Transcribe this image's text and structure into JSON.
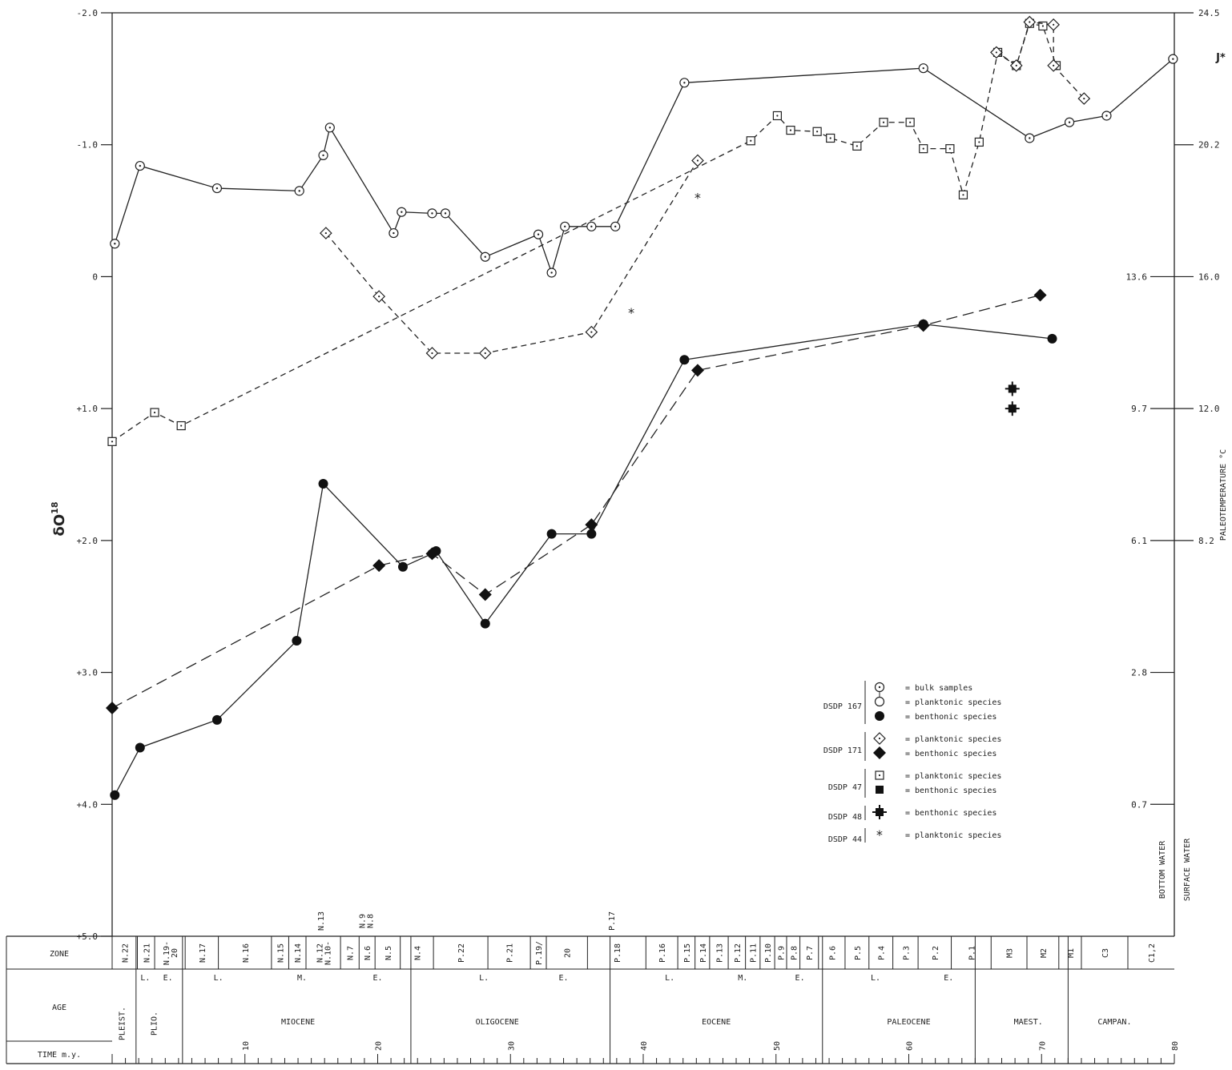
{
  "chart_data": {
    "type": "line",
    "ylabel": "δO",
    "ylabel_sup": "18",
    "y2label": "PALEOTEMPERATURE °C",
    "y_axis_direction": "inverted (negative values at top)",
    "ylim": [
      -2.0,
      5.0
    ],
    "xlim": [
      0,
      80
    ],
    "yticks": [
      {
        "value": -2.0,
        "label": "-2.0"
      },
      {
        "value": -1.0,
        "label": "-1.0"
      },
      {
        "value": 0,
        "label": "0"
      },
      {
        "value": 1.0,
        "label": "+1.0"
      },
      {
        "value": 2.0,
        "label": "+2.0"
      },
      {
        "value": 3.0,
        "label": "+3.0"
      },
      {
        "value": 4.0,
        "label": "+4.0"
      },
      {
        "value": 5.0,
        "label": "+5.0"
      }
    ],
    "surface_water_temps": [
      {
        "value": -2.0,
        "label": "24.5"
      },
      {
        "value": -1.0,
        "label": "20.2"
      },
      {
        "value": 0,
        "label": "16.0"
      },
      {
        "value": 1.0,
        "label": "12.0"
      },
      {
        "value": 2.0,
        "label": "8.2"
      }
    ],
    "bottom_water_temps": [
      {
        "value": 0,
        "label": "13.6"
      },
      {
        "value": 1.0,
        "label": "9.7"
      },
      {
        "value": 2.0,
        "label": "6.1"
      },
      {
        "value": 3.0,
        "label": "2.8"
      },
      {
        "value": 4.0,
        "label": "0.7"
      }
    ],
    "temp_columns": [
      "BOTTOM WATER",
      "SURFACE WATER"
    ],
    "corner_mark": "J*",
    "series": [
      {
        "name": "DSDP 167 planktonic species",
        "style": "solid",
        "marker": "circle-dot",
        "x": [
          0.2,
          2.1,
          7.9,
          14.1,
          15.9,
          16.4,
          21.2,
          21.8,
          24.1,
          25.1,
          28.1,
          32.1,
          33.1,
          34.1,
          36.1,
          37.9,
          43.1,
          61.1,
          69.1,
          72.1,
          74.9,
          79.9
        ],
        "y": [
          -0.25,
          -0.84,
          -0.67,
          -0.65,
          -0.92,
          -1.13,
          -0.33,
          -0.49,
          -0.48,
          -0.48,
          -0.15,
          -0.32,
          -0.03,
          -0.38,
          -0.38,
          -0.38,
          -1.47,
          -1.58,
          -1.05,
          -1.17,
          -1.22,
          -1.65
        ]
      },
      {
        "name": "DSDP 167 benthonic species",
        "style": "solid",
        "marker": "filled-circle",
        "x": [
          0.2,
          2.1,
          7.9,
          13.9,
          15.9,
          21.9,
          24.1,
          24.4,
          28.1,
          33.1,
          36.1,
          43.1,
          61.1,
          70.8
        ],
        "y": [
          3.93,
          3.57,
          3.36,
          2.76,
          1.57,
          2.2,
          2.1,
          2.08,
          2.63,
          1.95,
          1.95,
          0.63,
          0.36,
          0.47
        ]
      },
      {
        "name": "DSDP 171 planktonic species",
        "style": "dashed",
        "marker": "open-diamond",
        "x": [
          16.1,
          20.1,
          24.1,
          28.1,
          36.1,
          44.1
        ],
        "y": [
          -0.33,
          0.15,
          0.58,
          0.58,
          0.42,
          -0.88
        ]
      },
      {
        "name": "DSDP 171 benthonic species",
        "style": "dashed",
        "marker": "filled-diamond",
        "x": [
          0.0,
          20.1,
          24.1,
          28.1,
          36.1,
          44.1,
          61.1,
          69.9
        ],
        "y": [
          3.27,
          2.19,
          2.1,
          2.41,
          1.88,
          0.71,
          0.37,
          0.14
        ]
      },
      {
        "name": "DSDP 47 planktonic species",
        "style": "dashed",
        "marker": "open-square",
        "x": [
          0.0,
          3.2,
          5.2,
          48.1,
          50.1,
          51.1,
          53.1,
          54.1,
          56.1,
          58.1,
          60.1,
          61.1,
          63.1,
          64.1,
          65.3,
          66.7,
          68.1,
          69.1,
          70.1,
          71.1
        ],
        "y": [
          1.25,
          1.03,
          1.13,
          -1.03,
          -1.22,
          -1.11,
          -1.1,
          -1.05,
          -0.99,
          -1.17,
          -1.17,
          -0.97,
          -0.97,
          -0.62,
          -1.02,
          -1.7,
          -1.6,
          -1.92,
          -1.9,
          -1.6
        ]
      },
      {
        "name": "DSDP 171 planktonic species (Maastrichtian)",
        "style": "dashed",
        "marker": "open-diamond",
        "x": [
          66.6,
          68.1,
          69.1,
          70.9,
          70.9,
          73.2
        ],
        "y": [
          -1.7,
          -1.6,
          -1.93,
          -1.91,
          -1.6,
          -1.35
        ]
      },
      {
        "name": "DSDP 48 benthonic species",
        "style": "none",
        "marker": "filled-cross",
        "x": [
          67.8,
          67.8
        ],
        "y": [
          0.85,
          1.0
        ]
      },
      {
        "name": "DSDP 44 planktonic species",
        "style": "none",
        "marker": "asterisk",
        "x": [
          39.1,
          44.1
        ],
        "y": [
          0.27,
          -0.6
        ]
      }
    ],
    "legend": {
      "placement": "lower-right",
      "groups": [
        {
          "site": "DSDP 167",
          "entries": [
            {
              "marker": "bulk",
              "text": "= bulk samples"
            },
            {
              "marker": "open-circle",
              "text": "= planktonic species"
            },
            {
              "marker": "filled-circle",
              "text": "= benthonic species"
            }
          ]
        },
        {
          "site": "DSDP 171",
          "entries": [
            {
              "marker": "open-diamond",
              "text": "= planktonic species"
            },
            {
              "marker": "filled-diamond",
              "text": "= benthonic species"
            }
          ]
        },
        {
          "site": "DSDP  47",
          "entries": [
            {
              "marker": "open-square",
              "text": "= planktonic species"
            },
            {
              "marker": "filled-square",
              "text": "= benthonic species"
            }
          ]
        },
        {
          "site": "DSDP  48",
          "entries": [
            {
              "marker": "filled-cross",
              "text": "= benthonic species"
            }
          ]
        },
        {
          "site": "DSDP  44",
          "entries": [
            {
              "marker": "asterisk",
              "text": "= planktonic species"
            }
          ]
        }
      ]
    },
    "stratigraphy": {
      "row_labels": [
        "ZONE",
        "AGE",
        "TIME m.y."
      ],
      "zones": [
        {
          "x": 0.0,
          "label": "N.22"
        },
        {
          "x": 1.9,
          "label": "N.21"
        },
        {
          "x": 3.2,
          "label": "N.19-\n20"
        },
        {
          "x": 5.5,
          "label": "N.17"
        },
        {
          "x": 8.0,
          "label": "N.16"
        },
        {
          "x": 12.0,
          "label": "N.15"
        },
        {
          "x": 13.3,
          "label": "N.14"
        },
        {
          "x": 14.6,
          "label": "N.12\nN.10-"
        },
        {
          "x": 17.2,
          "label": "N.7"
        },
        {
          "x": 18.6,
          "label": "N.6"
        },
        {
          "x": 19.8,
          "label": "N.5"
        },
        {
          "x": 21.7,
          "label": "N.4"
        },
        {
          "x": 24.2,
          "label": "P.22"
        },
        {
          "x": 28.3,
          "label": "P.21"
        },
        {
          "x": 31.5,
          "label": "P.19/"
        },
        {
          "x": 32.7,
          "label": "20"
        },
        {
          "x": 35.8,
          "label": "P.18"
        },
        {
          "x": 40.2,
          "label": "P.16"
        },
        {
          "x": 42.6,
          "label": "P.15"
        },
        {
          "x": 43.9,
          "label": "P.14"
        },
        {
          "x": 45.0,
          "label": "P.13"
        },
        {
          "x": 46.4,
          "label": "P.12"
        },
        {
          "x": 47.7,
          "label": "P.11"
        },
        {
          "x": 48.8,
          "label": "P.10"
        },
        {
          "x": 49.9,
          "label": "P.9"
        },
        {
          "x": 50.8,
          "label": "P.8"
        },
        {
          "x": 51.8,
          "label": "P.7"
        },
        {
          "x": 53.2,
          "label": "P.6"
        },
        {
          "x": 55.2,
          "label": "P.5"
        },
        {
          "x": 57.0,
          "label": "P.4"
        },
        {
          "x": 58.8,
          "label": "P.3"
        },
        {
          "x": 60.7,
          "label": "P.2"
        },
        {
          "x": 63.2,
          "label": "P.1"
        },
        {
          "x": 66.2,
          "label": "M3"
        },
        {
          "x": 68.9,
          "label": "M2"
        },
        {
          "x": 71.3,
          "label": "M1"
        },
        {
          "x": 73.0,
          "label": "C3"
        },
        {
          "x": 76.5,
          "label": "C1,2"
        }
      ],
      "zones_above": [
        {
          "x": 15.7,
          "label": "N.13"
        },
        {
          "x": 18.8,
          "label": "N.9\nN.8"
        },
        {
          "x": 37.6,
          "label": "P.17"
        }
      ],
      "subepochs": [
        {
          "x": 2.5,
          "label": "L."
        },
        {
          "x": 4.2,
          "label": "E."
        },
        {
          "x": 8.0,
          "label": "L."
        },
        {
          "x": 14.3,
          "label": "M."
        },
        {
          "x": 20.0,
          "label": "E."
        },
        {
          "x": 28.0,
          "label": "L."
        },
        {
          "x": 34.0,
          "label": "E."
        },
        {
          "x": 42.0,
          "label": "L."
        },
        {
          "x": 47.5,
          "label": "M."
        },
        {
          "x": 51.8,
          "label": "E."
        },
        {
          "x": 57.5,
          "label": "L."
        },
        {
          "x": 63.0,
          "label": "E."
        }
      ],
      "epochs": [
        {
          "x": 0.7,
          "label": "PLEIST.",
          "vertical": true
        },
        {
          "x": 3.1,
          "label": "PLIO.",
          "vertical": true
        },
        {
          "x": 14.0,
          "label": "MIOCENE"
        },
        {
          "x": 29.0,
          "label": "OLIGOCENE"
        },
        {
          "x": 45.5,
          "label": "EOCENE"
        },
        {
          "x": 60.0,
          "label": "PALEOCENE"
        },
        {
          "x": 69.0,
          "label": "MAEST."
        },
        {
          "x": 75.5,
          "label": "CAMPAN."
        }
      ],
      "time_ticks": [
        10,
        20,
        30,
        40,
        50,
        60,
        70,
        80
      ]
    }
  }
}
